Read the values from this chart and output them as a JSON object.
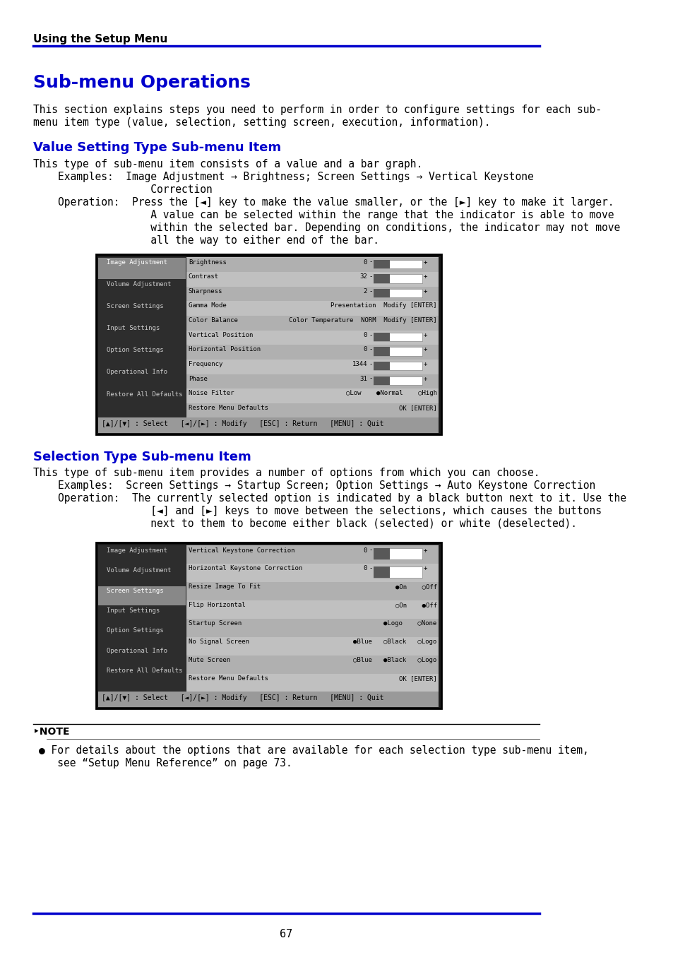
{
  "page_bg": "#ffffff",
  "header_text": "Using the Setup Menu",
  "header_color": "#000000",
  "header_line_color": "#0000cc",
  "title": "Sub-menu Operations",
  "title_color": "#0000cc",
  "intro_text": "This section explains steps you need to perform in order to configure settings for each sub-menu item type (value, selection, setting screen, execution, information).",
  "section1_title": "Value Setting Type Sub-menu Item",
  "section1_title_color": "#0000cc",
  "section2_title": "Selection Type Sub-menu Item",
  "section2_title_color": "#0000cc",
  "note_text": "For details about the options that are available for each selection type sub-menu item, see “Setup Menu Reference” on page 73.",
  "footer_line_color": "#0000cc",
  "page_number": "67",
  "screen1_left_items": [
    "Image Adjustment",
    "Volume Adjustment",
    "Screen Settings",
    "Input Settings",
    "Option Settings",
    "Operational Info",
    "Restore All Defaults"
  ],
  "screen1_right_items": [
    [
      "Brightness",
      "0",
      true
    ],
    [
      "Contrast",
      "32",
      true
    ],
    [
      "Sharpness",
      "2",
      true
    ],
    [
      "Gamma Mode",
      "Presentation  Modify [ENTER]",
      false
    ],
    [
      "Color Balance",
      "Color Temperature  NORM  Modify [ENTER]",
      false
    ],
    [
      "Vertical Position",
      "0",
      true
    ],
    [
      "Horizontal Position",
      "0",
      true
    ],
    [
      "Frequency",
      "1344",
      true
    ],
    [
      "Phase",
      "31",
      true
    ],
    [
      "Noise Filter",
      "○Low    ●Normal    ○High",
      false
    ],
    [
      "Restore Menu Defaults",
      "OK [ENTER]",
      false
    ]
  ],
  "screen1_footer": "[▲]/[▼] : Select   [◄]/[►] : Modify   [ESC] : Return   [MENU] : Quit",
  "screen2_left_items": [
    "Image Adjustment",
    "Volume Adjustment",
    "Screen Settings",
    "Input Settings",
    "Option Settings",
    "Operational Info",
    "Restore All Defaults"
  ],
  "screen2_right_items": [
    [
      "Vertical Keystone Correction",
      "0",
      true
    ],
    [
      "Horizontal Keystone Correction",
      "0",
      true
    ],
    [
      "Resize Image To Fit",
      "●On    ○Off",
      false
    ],
    [
      "Flip Horizontal",
      "○On    ●Off",
      false
    ],
    [
      "Startup Screen",
      "●Logo    ○None",
      false
    ],
    [
      "No Signal Screen",
      "●Blue   ○Black   ○Logo",
      false
    ],
    [
      "Mute Screen",
      "○Blue   ●Black   ○Logo",
      false
    ],
    [
      "Restore Menu Defaults",
      "OK [ENTER]",
      false
    ]
  ],
  "screen2_footer": "[▲]/[▼] : Select   [◄]/[►] : Modify   [ESC] : Return   [MENU] : Quit"
}
